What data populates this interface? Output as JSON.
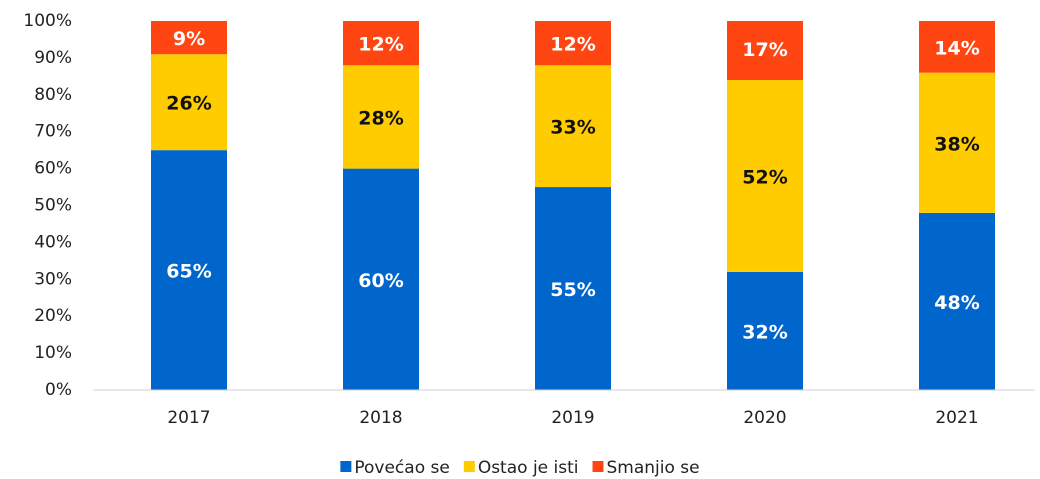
{
  "chart_data": {
    "type": "stacked_bar",
    "categories": [
      "2017",
      "2018",
      "2019",
      "2020",
      "2021"
    ],
    "series": [
      {
        "name": "Povećao se",
        "color": "#0066cc",
        "values": [
          65,
          60,
          55,
          32,
          48
        ],
        "value_labels": [
          "65%",
          "60%",
          "55%",
          "32%",
          "48%"
        ]
      },
      {
        "name": "Ostao je isti",
        "color": "#ffcc00",
        "values": [
          26,
          28,
          33,
          52,
          38
        ],
        "value_labels": [
          "26%",
          "28%",
          "33%",
          "52%",
          "38%"
        ]
      },
      {
        "name": "Smanjio se",
        "color": "#ff4512",
        "values": [
          9,
          12,
          12,
          17,
          14
        ],
        "value_labels": [
          "9%",
          "12%",
          "12%",
          "17%",
          "14%"
        ]
      }
    ],
    "ylim": [
      0,
      100
    ],
    "yticks": [
      {
        "value": 0,
        "label": "0%"
      },
      {
        "value": 10,
        "label": "10%"
      },
      {
        "value": 20,
        "label": "20%"
      },
      {
        "value": 30,
        "label": "30%"
      },
      {
        "value": 40,
        "label": "40%"
      },
      {
        "value": 50,
        "label": "50%"
      },
      {
        "value": 60,
        "label": "60%"
      },
      {
        "value": 70,
        "label": "70%"
      },
      {
        "value": 80,
        "label": "80%"
      },
      {
        "value": 90,
        "label": "90%"
      },
      {
        "value": 100,
        "label": "100%"
      }
    ],
    "grid": false,
    "legend": "bottom"
  }
}
